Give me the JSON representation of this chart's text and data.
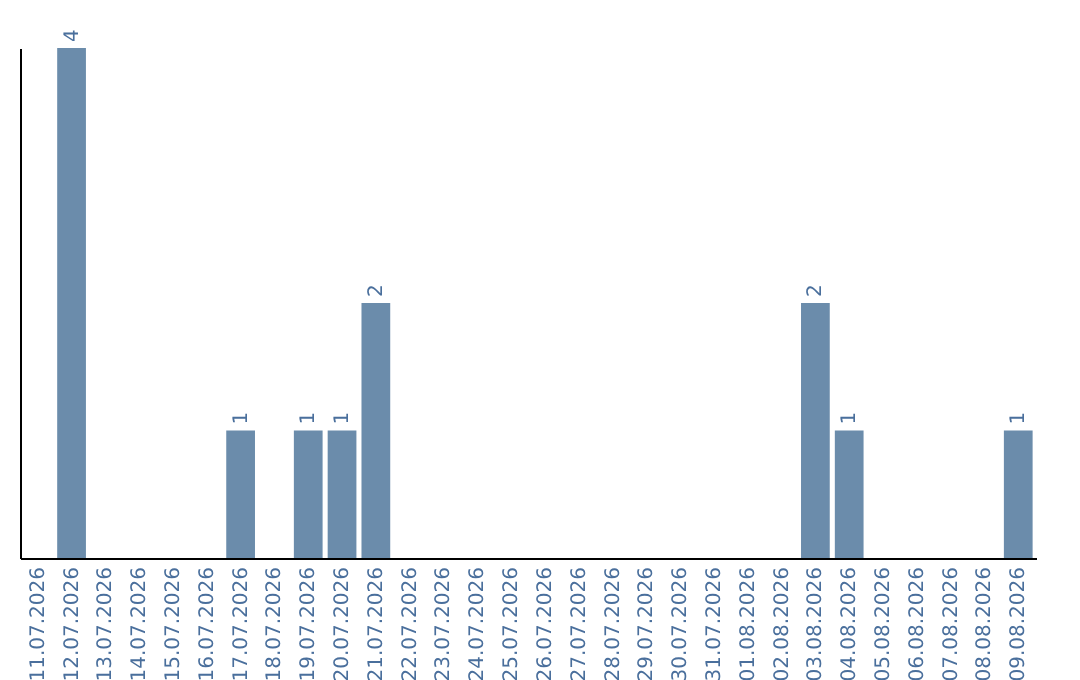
{
  "chart_data": {
    "type": "bar",
    "categories": [
      "11.07.2026",
      "12.07.2026",
      "13.07.2026",
      "14.07.2026",
      "15.07.2026",
      "16.07.2026",
      "17.07.2026",
      "18.07.2026",
      "19.07.2026",
      "20.07.2026",
      "21.07.2026",
      "22.07.2026",
      "23.07.2026",
      "24.07.2026",
      "25.07.2026",
      "26.07.2026",
      "27.07.2026",
      "28.07.2026",
      "29.07.2026",
      "30.07.2026",
      "31.07.2026",
      "01.08.2026",
      "02.08.2026",
      "03.08.2026",
      "04.08.2026",
      "05.08.2026",
      "06.08.2026",
      "07.08.2026",
      "08.08.2026",
      "09.08.2026"
    ],
    "values": [
      0,
      4,
      0,
      0,
      0,
      0,
      1,
      0,
      1,
      1,
      2,
      0,
      0,
      0,
      0,
      0,
      0,
      0,
      0,
      0,
      0,
      0,
      0,
      2,
      1,
      0,
      0,
      0,
      0,
      1
    ],
    "value_labels": [
      null,
      "4",
      null,
      null,
      null,
      null,
      "1",
      null,
      "1",
      "1",
      "2",
      null,
      null,
      null,
      null,
      null,
      null,
      null,
      null,
      null,
      null,
      null,
      null,
      "2",
      "1",
      null,
      null,
      null,
      null,
      "1"
    ],
    "color": "#6b8cab",
    "tick_labels": "x",
    "grid": false
  }
}
